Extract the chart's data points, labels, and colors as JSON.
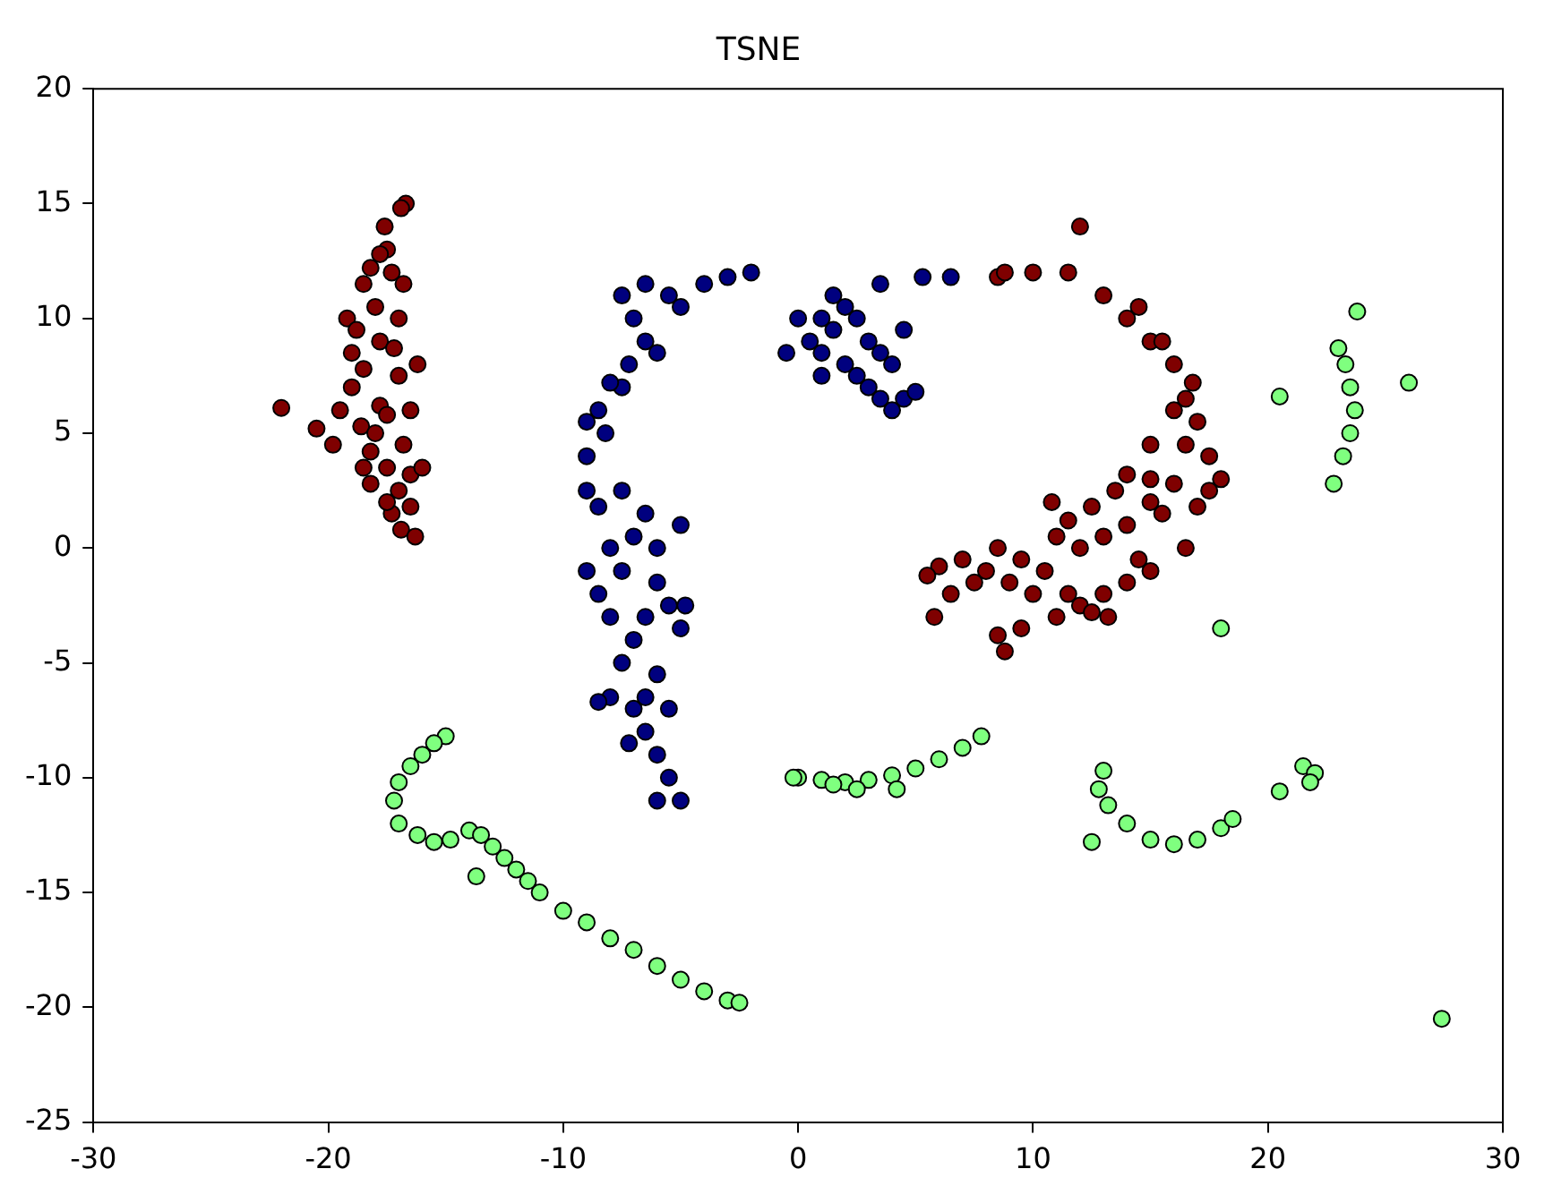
{
  "chart_data": {
    "type": "scatter",
    "title": "TSNE",
    "marker": "circle",
    "grid": false,
    "legend": false,
    "xlim": [
      -30,
      30
    ],
    "xticks": [
      -30,
      -20,
      -10,
      0,
      10,
      20,
      30
    ],
    "ylim": [
      -25,
      20
    ],
    "yticks": [
      -25,
      -20,
      -15,
      -10,
      -5,
      0,
      5,
      10,
      15,
      20
    ],
    "series": [
      {
        "color": "#7f0000",
        "x": [
          -22,
          -20.5,
          -19.8,
          -19.5,
          -19,
          -19.2,
          -18.5,
          -18.2,
          -17.6,
          -16.7,
          -16.9,
          -17.5,
          -17.3,
          -18,
          -17.8,
          -18.5,
          -19,
          -18.6,
          -18.2,
          -17.5,
          -17,
          -16.5,
          -16,
          -16.8,
          -17.8,
          -17.5,
          -17,
          -16.5,
          -18.2,
          -17.3,
          -16.9,
          -16.3,
          -16.5,
          -17.5,
          -18.5,
          -17,
          -16.8,
          -17.8,
          -18.8,
          -16.2,
          -17.2,
          -18,
          8.5,
          10,
          12,
          13,
          14,
          15,
          16,
          16.5,
          17,
          16.5,
          17.5,
          18,
          17.5,
          16,
          15,
          14,
          13.5,
          12.5,
          11.5,
          11,
          12,
          13,
          14,
          15.5,
          17,
          16.5,
          15,
          14,
          13,
          12,
          11,
          10,
          9,
          8,
          7,
          6,
          5.5,
          6.5,
          5.8,
          7.5,
          8.5,
          9.5,
          8.5,
          8.8,
          9.5,
          12.5,
          13.2,
          14.5,
          15,
          16,
          15.5,
          14.5,
          16.8,
          10.5,
          11.5,
          10.8,
          15,
          8.8,
          11.5
        ],
        "values": [
          6.1,
          5.2,
          4.5,
          6,
          8.5,
          10,
          11.5,
          12.2,
          14,
          15,
          14.8,
          13,
          12,
          10.5,
          9,
          7.8,
          7,
          5.3,
          4.2,
          3.5,
          2.5,
          3.2,
          3.5,
          4.5,
          6.2,
          5.8,
          7.5,
          6,
          2.8,
          1.5,
          0.8,
          0.5,
          1.8,
          2,
          3.5,
          10,
          11.5,
          12.8,
          9.5,
          8,
          8.7,
          5,
          11.8,
          12,
          14,
          11,
          10,
          9,
          8,
          6.5,
          5.5,
          4.5,
          4,
          3,
          2.5,
          2.8,
          3,
          3.2,
          2.5,
          1.8,
          1.2,
          0.5,
          0,
          0.5,
          1,
          1.5,
          1.8,
          0,
          -1,
          -1.5,
          -2,
          -2.5,
          -3,
          -2,
          -1.5,
          -1,
          -0.5,
          -0.8,
          -1.2,
          -2,
          -3,
          -1.5,
          0,
          -0.5,
          -3.8,
          -4.5,
          -3.5,
          -2.8,
          -3,
          -0.5,
          4.5,
          6,
          9,
          10.5,
          7.2,
          -1,
          -2,
          2,
          2,
          12,
          12
        ]
      },
      {
        "color": "#00007f",
        "x": [
          -5,
          -5.5,
          -6,
          -6.5,
          -7,
          -8,
          -7.5,
          -7,
          -8,
          -8.5,
          -7.5,
          -6,
          -5.5,
          -6.5,
          -5,
          -8,
          -7,
          -6,
          -5,
          -6.5,
          -8.5,
          -9,
          -7.5,
          -9,
          -8.2,
          -8.5,
          -9,
          -7.5,
          -7.2,
          -6.5,
          -7,
          -7.5,
          -6.5,
          -5.5,
          -5,
          -4,
          -3,
          -2,
          -6,
          -8,
          -6,
          -6.5,
          -5.5,
          -7.2,
          -8.5,
          -6,
          -4.8,
          -9,
          0,
          0.5,
          1,
          1.5,
          2,
          2.5,
          3,
          2,
          2.5,
          3,
          3.5,
          4,
          4.5,
          5,
          1,
          -0.5,
          1,
          3.5,
          4.5,
          1.5,
          3.5,
          4,
          6.5,
          5.3
        ],
        "values": [
          -11,
          -10,
          -9,
          -8,
          -7,
          -6.5,
          -5,
          -4,
          -3,
          -2,
          -1,
          -1.5,
          -2.5,
          -3,
          -3.5,
          0,
          0.5,
          0,
          1,
          1.5,
          1.8,
          2.5,
          2.5,
          4,
          5,
          6,
          5.5,
          7,
          8,
          9,
          10,
          11,
          11.5,
          11,
          10.5,
          11.5,
          11.8,
          12,
          8.5,
          7.2,
          -5.5,
          -6.5,
          -7,
          -8.5,
          -6.7,
          -11,
          -2.5,
          -1,
          10,
          9,
          8.5,
          9.5,
          8,
          7.5,
          7,
          10.5,
          10,
          9,
          6.5,
          6,
          6.5,
          6.8,
          10,
          8.5,
          7.5,
          8.5,
          9.5,
          11,
          11.5,
          8,
          11.8,
          11.8
        ]
      },
      {
        "color": "#7fff7f",
        "x": [
          -15,
          -15.5,
          -16,
          -16.5,
          -17,
          -17.2,
          -17,
          -16.2,
          -15.5,
          -14.8,
          -14,
          -13.5,
          -13,
          -12.5,
          -12,
          -11.5,
          -11,
          -10,
          -9,
          -8,
          -7,
          -6,
          -5,
          -4,
          -3,
          -2.5,
          -13.7,
          0,
          1,
          2,
          3,
          4,
          5,
          6,
          7,
          7.8,
          2.5,
          4.2,
          -0.2,
          1.5,
          13,
          12.8,
          13.2,
          14,
          15,
          16,
          17,
          18,
          18.5,
          12.5,
          20.5,
          21.5,
          22,
          21.8,
          23,
          23.3,
          23.5,
          23.7,
          23.5,
          23.2,
          22.8,
          23.8,
          20.5,
          26,
          18,
          27.4
        ],
        "values": [
          -8.2,
          -8.5,
          -9,
          -9.5,
          -10.2,
          -11,
          -12,
          -12.5,
          -12.8,
          -12.7,
          -12.3,
          -12.5,
          -13,
          -13.5,
          -14,
          -14.5,
          -15,
          -15.8,
          -16.3,
          -17,
          -17.5,
          -18.2,
          -18.8,
          -19.3,
          -19.7,
          -19.8,
          -14.3,
          -10,
          -10.1,
          -10.2,
          -10.1,
          -9.9,
          -9.6,
          -9.2,
          -8.7,
          -8.2,
          -10.5,
          -10.5,
          -10,
          -10.3,
          -9.7,
          -10.5,
          -11.2,
          -12,
          -12.7,
          -12.9,
          -12.7,
          -12.2,
          -11.8,
          -12.8,
          -10.6,
          -9.5,
          -9.8,
          -10.2,
          8.7,
          8,
          7,
          6,
          5,
          4,
          2.8,
          10.3,
          6.6,
          7.2,
          -3.5,
          -20.5
        ]
      }
    ]
  }
}
